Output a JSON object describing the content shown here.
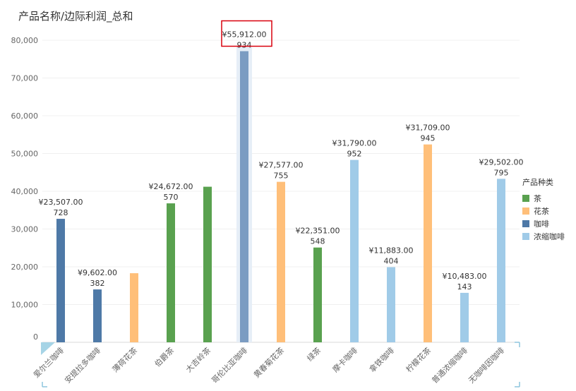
{
  "chart_data": {
    "type": "bar",
    "title": "产品名称/边际利润_总和",
    "xlabel": "",
    "ylabel": "",
    "ylim": [
      0,
      80000
    ],
    "yticks": [
      "0",
      "10,000",
      "20,000",
      "30,000",
      "40,000",
      "50,000",
      "60,000",
      "70,000",
      "80,000"
    ],
    "legend": {
      "title": "产品种类",
      "position": "right",
      "items": [
        {
          "name": "茶",
          "color": "#59a14f"
        },
        {
          "name": "花茶",
          "color": "#ffbf79"
        },
        {
          "name": "咖啡",
          "color": "#4e79a7"
        },
        {
          "name": "浓缩咖啡",
          "color": "#a0cbe8"
        }
      ]
    },
    "categories": [
      "爱尔兰咖啡",
      "安提拉多咖啡",
      "薄荷花茶",
      "伯爵茶",
      "大吉岭茶",
      "哥伦比亚咖啡",
      "黄春菊花茶",
      "绿茶",
      "摩卡咖啡",
      "拿铁咖啡",
      "柠檬花茶",
      "普通浓缩咖啡",
      "无咖啡因咖啡"
    ],
    "bars": [
      {
        "value": 32700,
        "type": "咖啡",
        "label1": "¥23,507.00",
        "label2": "728"
      },
      {
        "value": 14000,
        "type": "咖啡",
        "label1": "¥9,602.00",
        "label2": "382"
      },
      {
        "value": 18300,
        "type": "花茶",
        "label1": "",
        "label2": ""
      },
      {
        "value": 36800,
        "type": "茶",
        "label1": "¥24,672.00",
        "label2": "570"
      },
      {
        "value": 41200,
        "type": "茶",
        "label1": "",
        "label2": ""
      },
      {
        "value": 77100,
        "type": "咖啡",
        "label1": "¥55,912.00",
        "label2": "934",
        "highlighted": true
      },
      {
        "value": 42500,
        "type": "花茶",
        "label1": "¥27,577.00",
        "label2": "755"
      },
      {
        "value": 25100,
        "type": "茶",
        "label1": "¥22,351.00",
        "label2": "548"
      },
      {
        "value": 48300,
        "type": "浓缩咖啡",
        "label1": "¥31,790.00",
        "label2": "952"
      },
      {
        "value": 19900,
        "type": "浓缩咖啡",
        "label1": "¥11,883.00",
        "label2": "404"
      },
      {
        "value": 52400,
        "type": "花茶",
        "label1": "¥31,709.00",
        "label2": "945"
      },
      {
        "value": 13100,
        "type": "浓缩咖啡",
        "label1": "¥10,483.00",
        "label2": "143"
      },
      {
        "value": 43300,
        "type": "浓缩咖啡",
        "label1": "¥29,502.00",
        "label2": "795"
      }
    ]
  }
}
